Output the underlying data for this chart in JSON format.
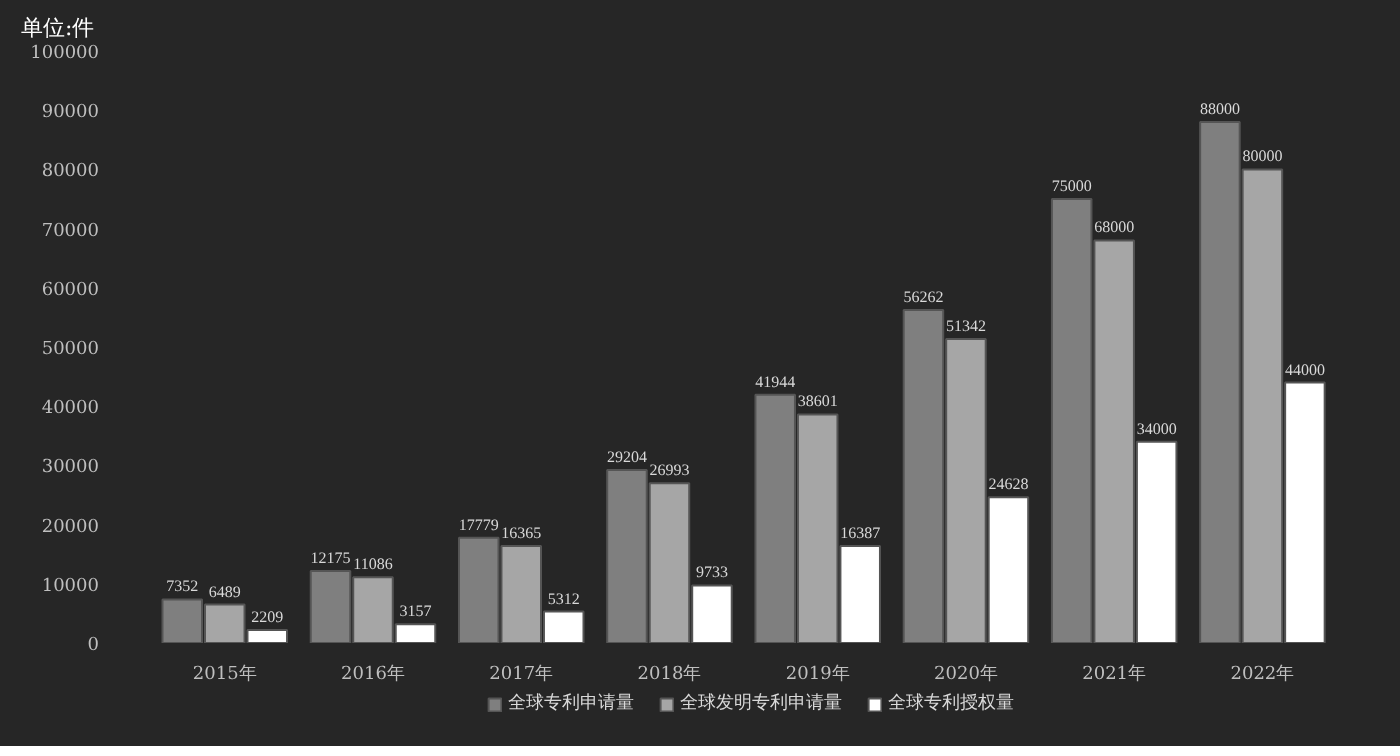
{
  "chart_data": {
    "type": "bar",
    "ylabel": "单位:件",
    "categories": [
      "2015年",
      "2016年",
      "2017年",
      "2018年",
      "2019年",
      "2020年",
      "2021年",
      "2022年"
    ],
    "series": [
      {
        "name": "全球专利申请量",
        "color": "#7f7f7f",
        "values": [
          7352,
          12175,
          17779,
          29204,
          41944,
          56262,
          75000,
          88000
        ]
      },
      {
        "name": "全球发明专利申请量",
        "color": "#a6a6a6",
        "values": [
          6489,
          11086,
          16365,
          26993,
          38601,
          51342,
          68000,
          80000
        ]
      },
      {
        "name": "全球专利授权量",
        "color": "#ffffff",
        "values": [
          2209,
          3157,
          5312,
          9733,
          16387,
          24628,
          34000,
          44000
        ]
      }
    ],
    "ylim": [
      0,
      100000
    ],
    "yticks": [
      0,
      10000,
      20000,
      30000,
      40000,
      50000,
      60000,
      70000,
      80000,
      90000,
      100000
    ],
    "data_labels": true,
    "legend": "bottom",
    "grid": false
  }
}
